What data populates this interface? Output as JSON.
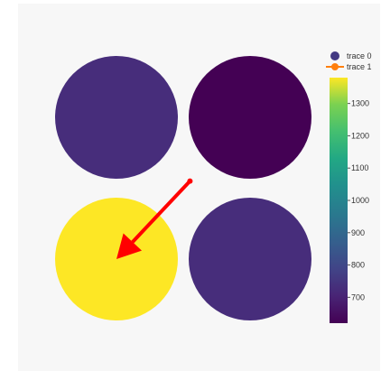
{
  "chart_data": {
    "type": "scatter",
    "grid": false,
    "legend_position": "top-right",
    "title": "",
    "xlabel": "",
    "ylabel": "",
    "color_scale": "viridis",
    "colorbar": {
      "range": [
        620,
        1380
      ],
      "ticks": [
        700,
        800,
        900,
        1000,
        1100,
        1200,
        1300
      ],
      "tick_labels": [
        "700",
        "800",
        "900",
        "1000",
        "1100",
        "1200",
        "1300"
      ]
    },
    "series": [
      {
        "name": "trace 0",
        "mode": "markers",
        "marker_color": "#443a83",
        "points": [
          {
            "x": 0,
            "y": 1,
            "color_value": 760,
            "color": "#472d7b"
          },
          {
            "x": 1,
            "y": 1,
            "color_value": 625,
            "color": "#440154"
          },
          {
            "x": 0,
            "y": 0,
            "color_value": 1380,
            "color": "#fde725"
          },
          {
            "x": 1,
            "y": 0,
            "color_value": 750,
            "color": "#472d7b"
          }
        ]
      },
      {
        "name": "trace 1",
        "mode": "lines+markers",
        "line_color": "#ff0000",
        "marker_color": "#ff7f0e",
        "points": [
          {
            "x": 0.55,
            "y": 0.55
          },
          {
            "x": 0.0,
            "y": 0.0
          }
        ]
      }
    ]
  }
}
